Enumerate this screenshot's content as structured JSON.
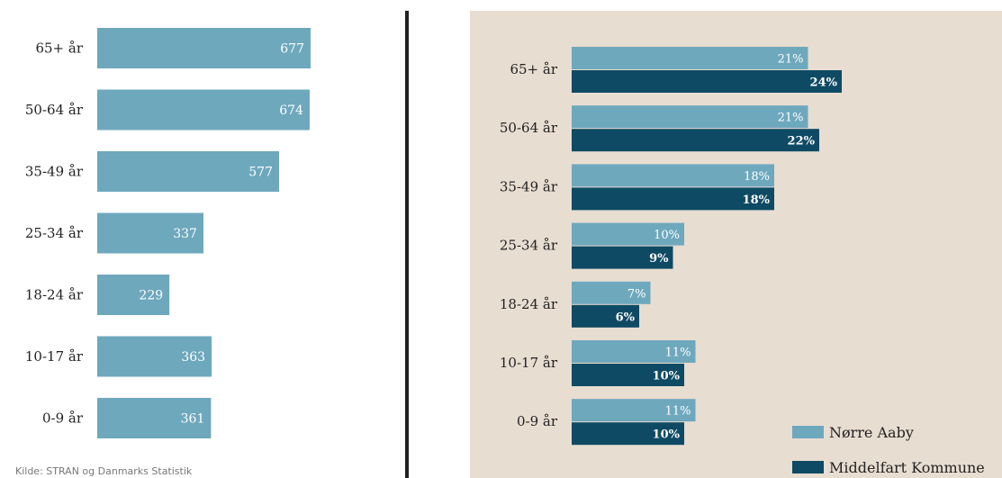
{
  "colors": {
    "bar_light": "#6ea8bd",
    "bar_dark": "#0e4a64",
    "panel_bg": "#e8ddd1",
    "label_text": "#ffffff",
    "axis_text": "#222222"
  },
  "source_note": "Kilde: STRAN og Danmarks Statistik",
  "chart_data": [
    {
      "type": "bar",
      "orientation": "horizontal",
      "categories": [
        "65+ år",
        "50-64 år",
        "35-49 år",
        "25-34 år",
        "18-24 år",
        "10-17 år",
        "0-9 år"
      ],
      "values": [
        677,
        674,
        577,
        337,
        229,
        363,
        361
      ],
      "data_labels": [
        "677",
        "674",
        "577",
        "337",
        "229",
        "363",
        "361"
      ],
      "xlim": [
        0,
        677
      ]
    },
    {
      "type": "bar",
      "orientation": "horizontal",
      "categories": [
        "65+ år",
        "50-64 år",
        "35-49 år",
        "25-34 år",
        "18-24 år",
        "10-17 år",
        "0-9 år"
      ],
      "series": [
        {
          "name": "Nørre Aaby",
          "values": [
            21,
            21,
            18,
            10,
            7,
            11,
            11
          ],
          "data_labels": [
            "21%",
            "21%",
            "18%",
            "10%",
            "7%",
            "11%",
            "11%"
          ]
        },
        {
          "name": "Middelfart Kommune",
          "values": [
            24,
            22,
            18,
            9,
            6,
            10,
            10
          ],
          "data_labels": [
            "24%",
            "22%",
            "18%",
            "9%",
            "6%",
            "10%",
            "10%"
          ]
        }
      ],
      "xlim": [
        0,
        24
      ],
      "legend": "bottom-right"
    }
  ]
}
